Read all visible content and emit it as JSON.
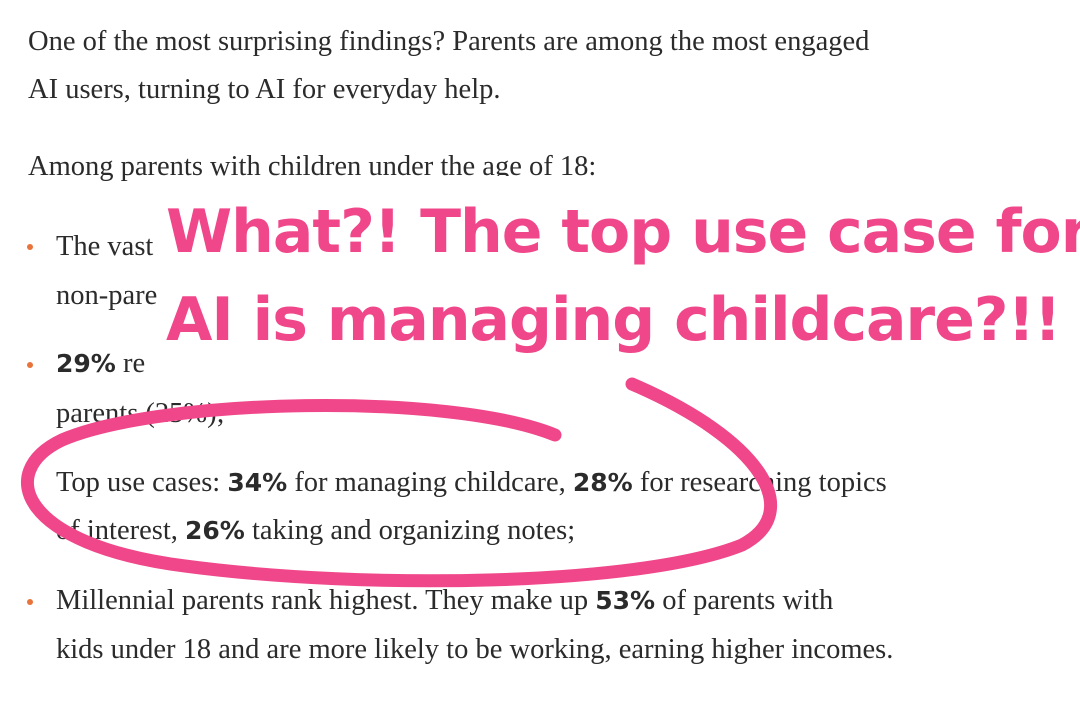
{
  "paragraphs": [
    [
      "One of the most surprising findings? Parents are among the most engaged",
      "AI users, turning to AI for everyday help."
    ],
    [
      "Among parents with children under the age of 18:"
    ]
  ],
  "bullets": [
    [
      [
        "The vast"
      ],
      [
        "non-pare"
      ]
    ],
    [
      [
        "29%",
        " re"
      ],
      [
        "parents (25%);"
      ]
    ],
    [
      [
        "Top use cases: ",
        "34%",
        " for managing childcare, ",
        "28%",
        " for researching topics"
      ],
      [
        "of interest, ",
        "26%",
        " taking and organizing notes;"
      ]
    ],
    [
      [
        "Millennial parents rank highest. They make up ",
        "53%",
        " of parents with"
      ],
      [
        "kids under 18 and are more likely to be working, earning higher incomes."
      ]
    ]
  ],
  "annotation": {
    "lines": [
      "What?! The top use case for",
      "AI is managing childcare?!!"
    ]
  }
}
